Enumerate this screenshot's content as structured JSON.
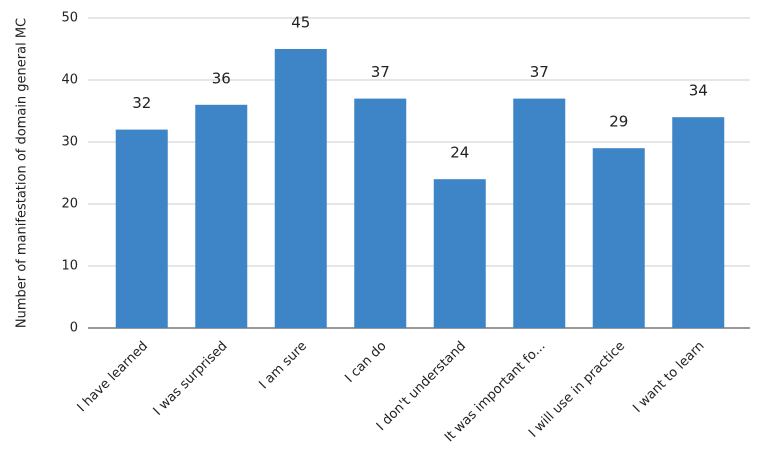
{
  "chart_data": {
    "type": "bar",
    "y_label": "Number of manifestation of domain general MC",
    "categories": [
      "I have learned",
      "I was surprised",
      "I am sure",
      "I can do",
      "I don't understand",
      "It was important fo...",
      "I will use in practice",
      "I want to learn"
    ],
    "values": [
      32,
      36,
      45,
      37,
      24,
      37,
      29,
      34
    ],
    "color": "#3d85c6",
    "ylim": [
      0,
      50
    ],
    "yticks": [
      0,
      10,
      20,
      30,
      40,
      50
    ],
    "grid": true,
    "data_labels": true
  }
}
